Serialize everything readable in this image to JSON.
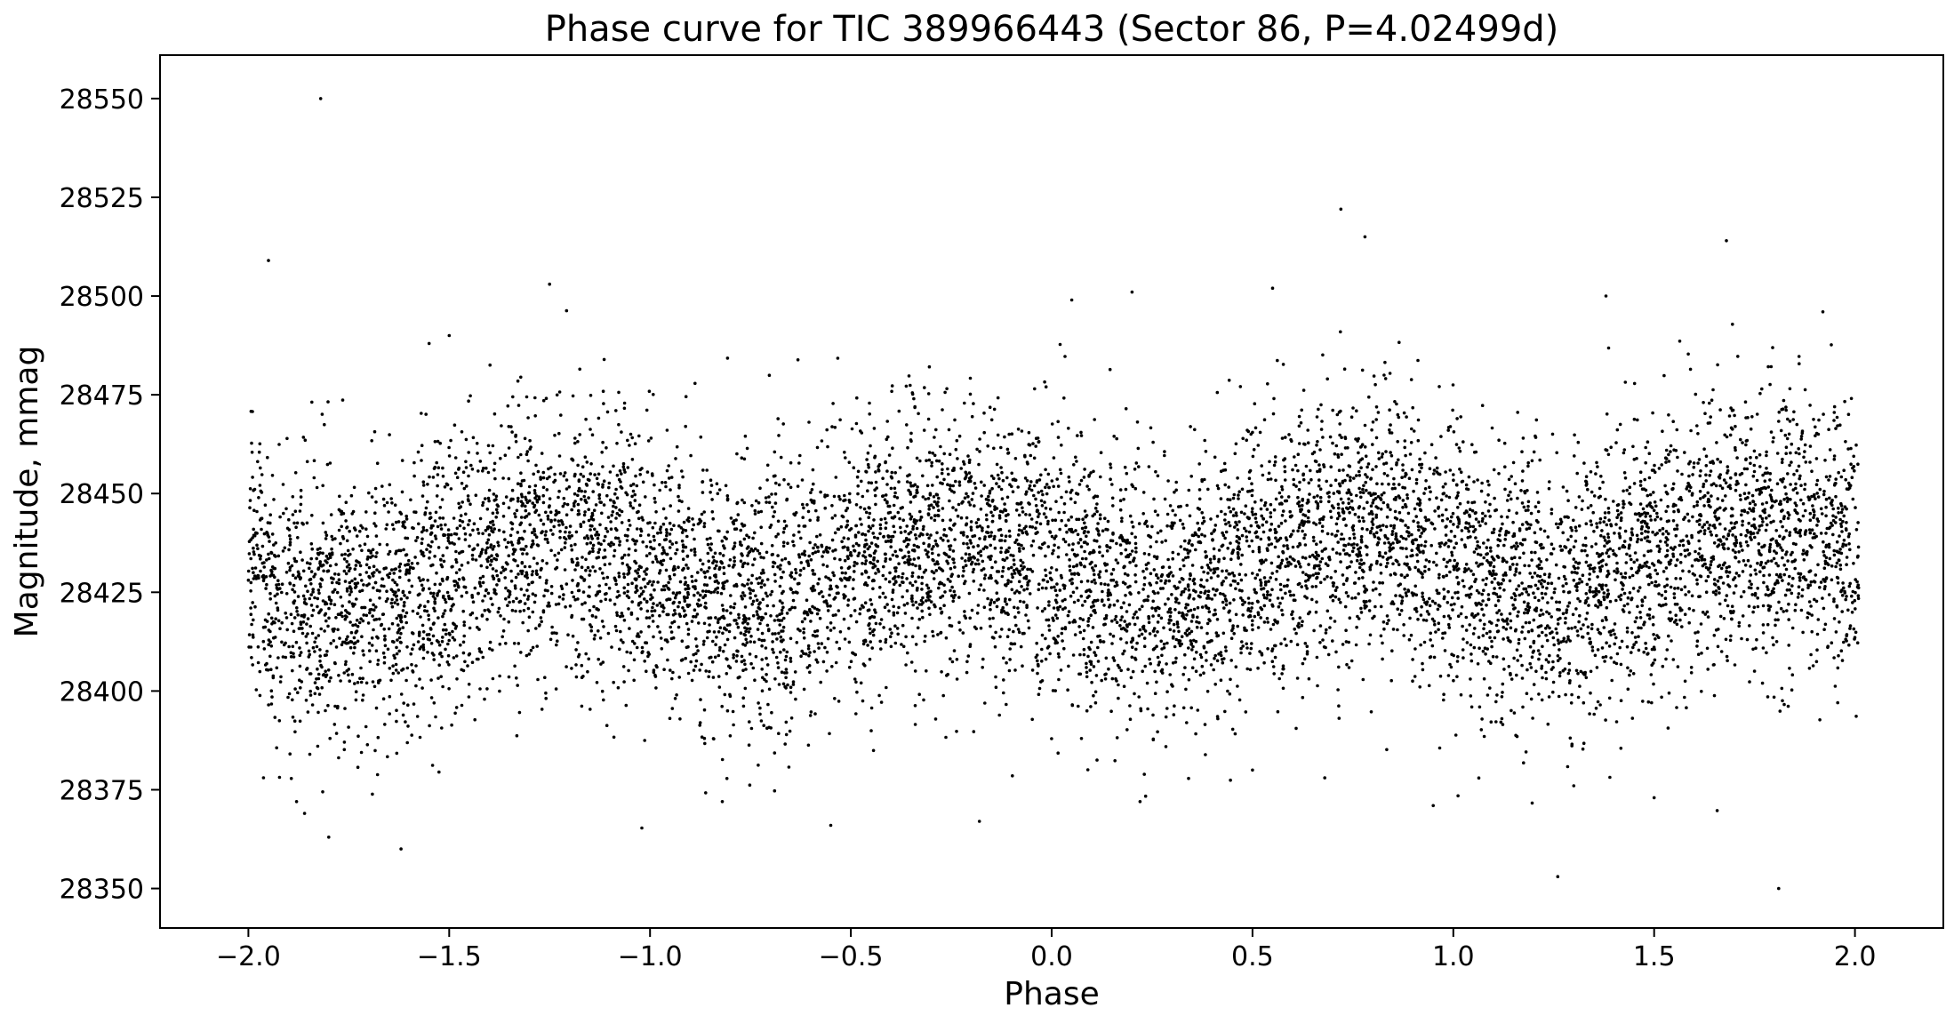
{
  "chart_data": {
    "type": "scatter",
    "title": "Phase curve for TIC 389966443 (Sector 86, P=4.02499d)",
    "xlabel": "Phase",
    "ylabel": "Magnitude, mmag",
    "xlim": [
      -2.22,
      2.22
    ],
    "ylim": [
      28340,
      28561
    ],
    "xticks": [
      -2.0,
      -1.5,
      -1.0,
      -0.5,
      0.0,
      0.5,
      1.0,
      1.5,
      2.0
    ],
    "xtick_labels": [
      "−2.0",
      "−1.5",
      "−1.0",
      "−0.5",
      "0.0",
      "0.5",
      "1.0",
      "1.5",
      "2.0"
    ],
    "yticks": [
      28350,
      28375,
      28400,
      28425,
      28450,
      28475,
      28500,
      28525,
      28550
    ],
    "ytick_labels": [
      "28350",
      "28375",
      "28400",
      "28425",
      "28450",
      "28475",
      "28500",
      "28525",
      "28550"
    ],
    "grid": false,
    "legend": "none",
    "marker_color": "#000000",
    "outlier_points": {
      "x": [
        -1.82,
        -1.95,
        -1.25,
        0.72,
        0.78,
        1.68,
        -1.8,
        -1.62,
        -0.55,
        1.26,
        1.81,
        -1.86,
        -1.88,
        0.05,
        0.2,
        0.55,
        1.38,
        1.92,
        0.95,
        0.22,
        0.68,
        -1.55,
        -1.5,
        -0.18,
        0.5,
        1.5,
        1.3,
        -0.82
      ],
      "y": [
        28550,
        28509,
        28503,
        28522,
        28515,
        28514,
        28363,
        28360,
        28366,
        28353,
        28350,
        28369,
        28372,
        28499,
        28501,
        28502,
        28500,
        28496,
        28371,
        28372,
        28378,
        28488,
        28490,
        28367,
        28380,
        28373,
        28376,
        28372
      ]
    },
    "bulk_series": {
      "count": 9000,
      "x_range": [
        -2.0,
        2.01
      ],
      "baseline": 28432,
      "trend_per_phase": 1.5,
      "modulation_amplitude": 8,
      "modulation_period": 1.0,
      "modulation_peak_phase": 0.75,
      "scatter_sigma": 17,
      "seed": 389966443
    }
  }
}
